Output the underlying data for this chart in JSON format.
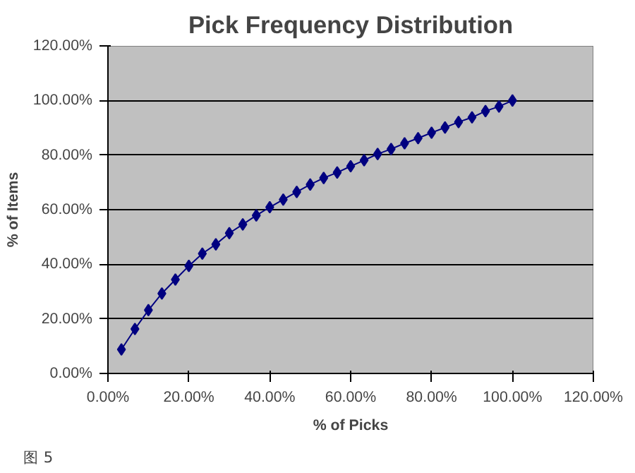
{
  "chart_data": {
    "type": "line",
    "title": "Pick Frequency Distribution",
    "xlabel": "% of Picks",
    "ylabel": "% of Items",
    "annotations": [
      "图 5"
    ],
    "x": [
      3.33,
      6.67,
      10,
      13.33,
      16.67,
      20,
      23.33,
      26.67,
      30,
      33.33,
      36.67,
      40,
      43.33,
      46.67,
      50,
      53.33,
      56.67,
      60,
      63.33,
      66.67,
      70,
      73.33,
      76.67,
      80,
      83.33,
      86.67,
      90,
      93.33,
      96.67,
      100
    ],
    "series": [
      {
        "color": "#000080",
        "values": [
          8.8,
          16.3,
          23.2,
          29.3,
          34.4,
          39.4,
          43.9,
          47.3,
          51.4,
          54.6,
          57.9,
          60.9,
          63.7,
          66.5,
          69.2,
          71.6,
          73.6,
          75.9,
          78.1,
          80.4,
          82.2,
          84.3,
          86.2,
          88.2,
          90.1,
          92.1,
          93.8,
          96.1,
          97.8,
          100
        ]
      }
    ],
    "marker": "diamond",
    "line_style": "solid",
    "grid": "y",
    "xlim": [
      0,
      120
    ],
    "ylim": [
      0,
      120
    ],
    "xticks": [
      {
        "value": 0,
        "label": "0.00%"
      },
      {
        "value": 20,
        "label": "20.00%"
      },
      {
        "value": 40,
        "label": "40.00%"
      },
      {
        "value": 60,
        "label": "60.00%"
      },
      {
        "value": 80,
        "label": "80.00%"
      },
      {
        "value": 100,
        "label": "100.00%"
      },
      {
        "value": 120,
        "label": "120.00%"
      }
    ],
    "yticks": [
      {
        "value": 0,
        "label": "0.00%"
      },
      {
        "value": 20,
        "label": "20.00%"
      },
      {
        "value": 40,
        "label": "40.00%"
      },
      {
        "value": 60,
        "label": "60.00%"
      },
      {
        "value": 80,
        "label": "80.00%"
      },
      {
        "value": 100,
        "label": "100.00%"
      },
      {
        "value": 120,
        "label": "120.00%"
      }
    ]
  }
}
